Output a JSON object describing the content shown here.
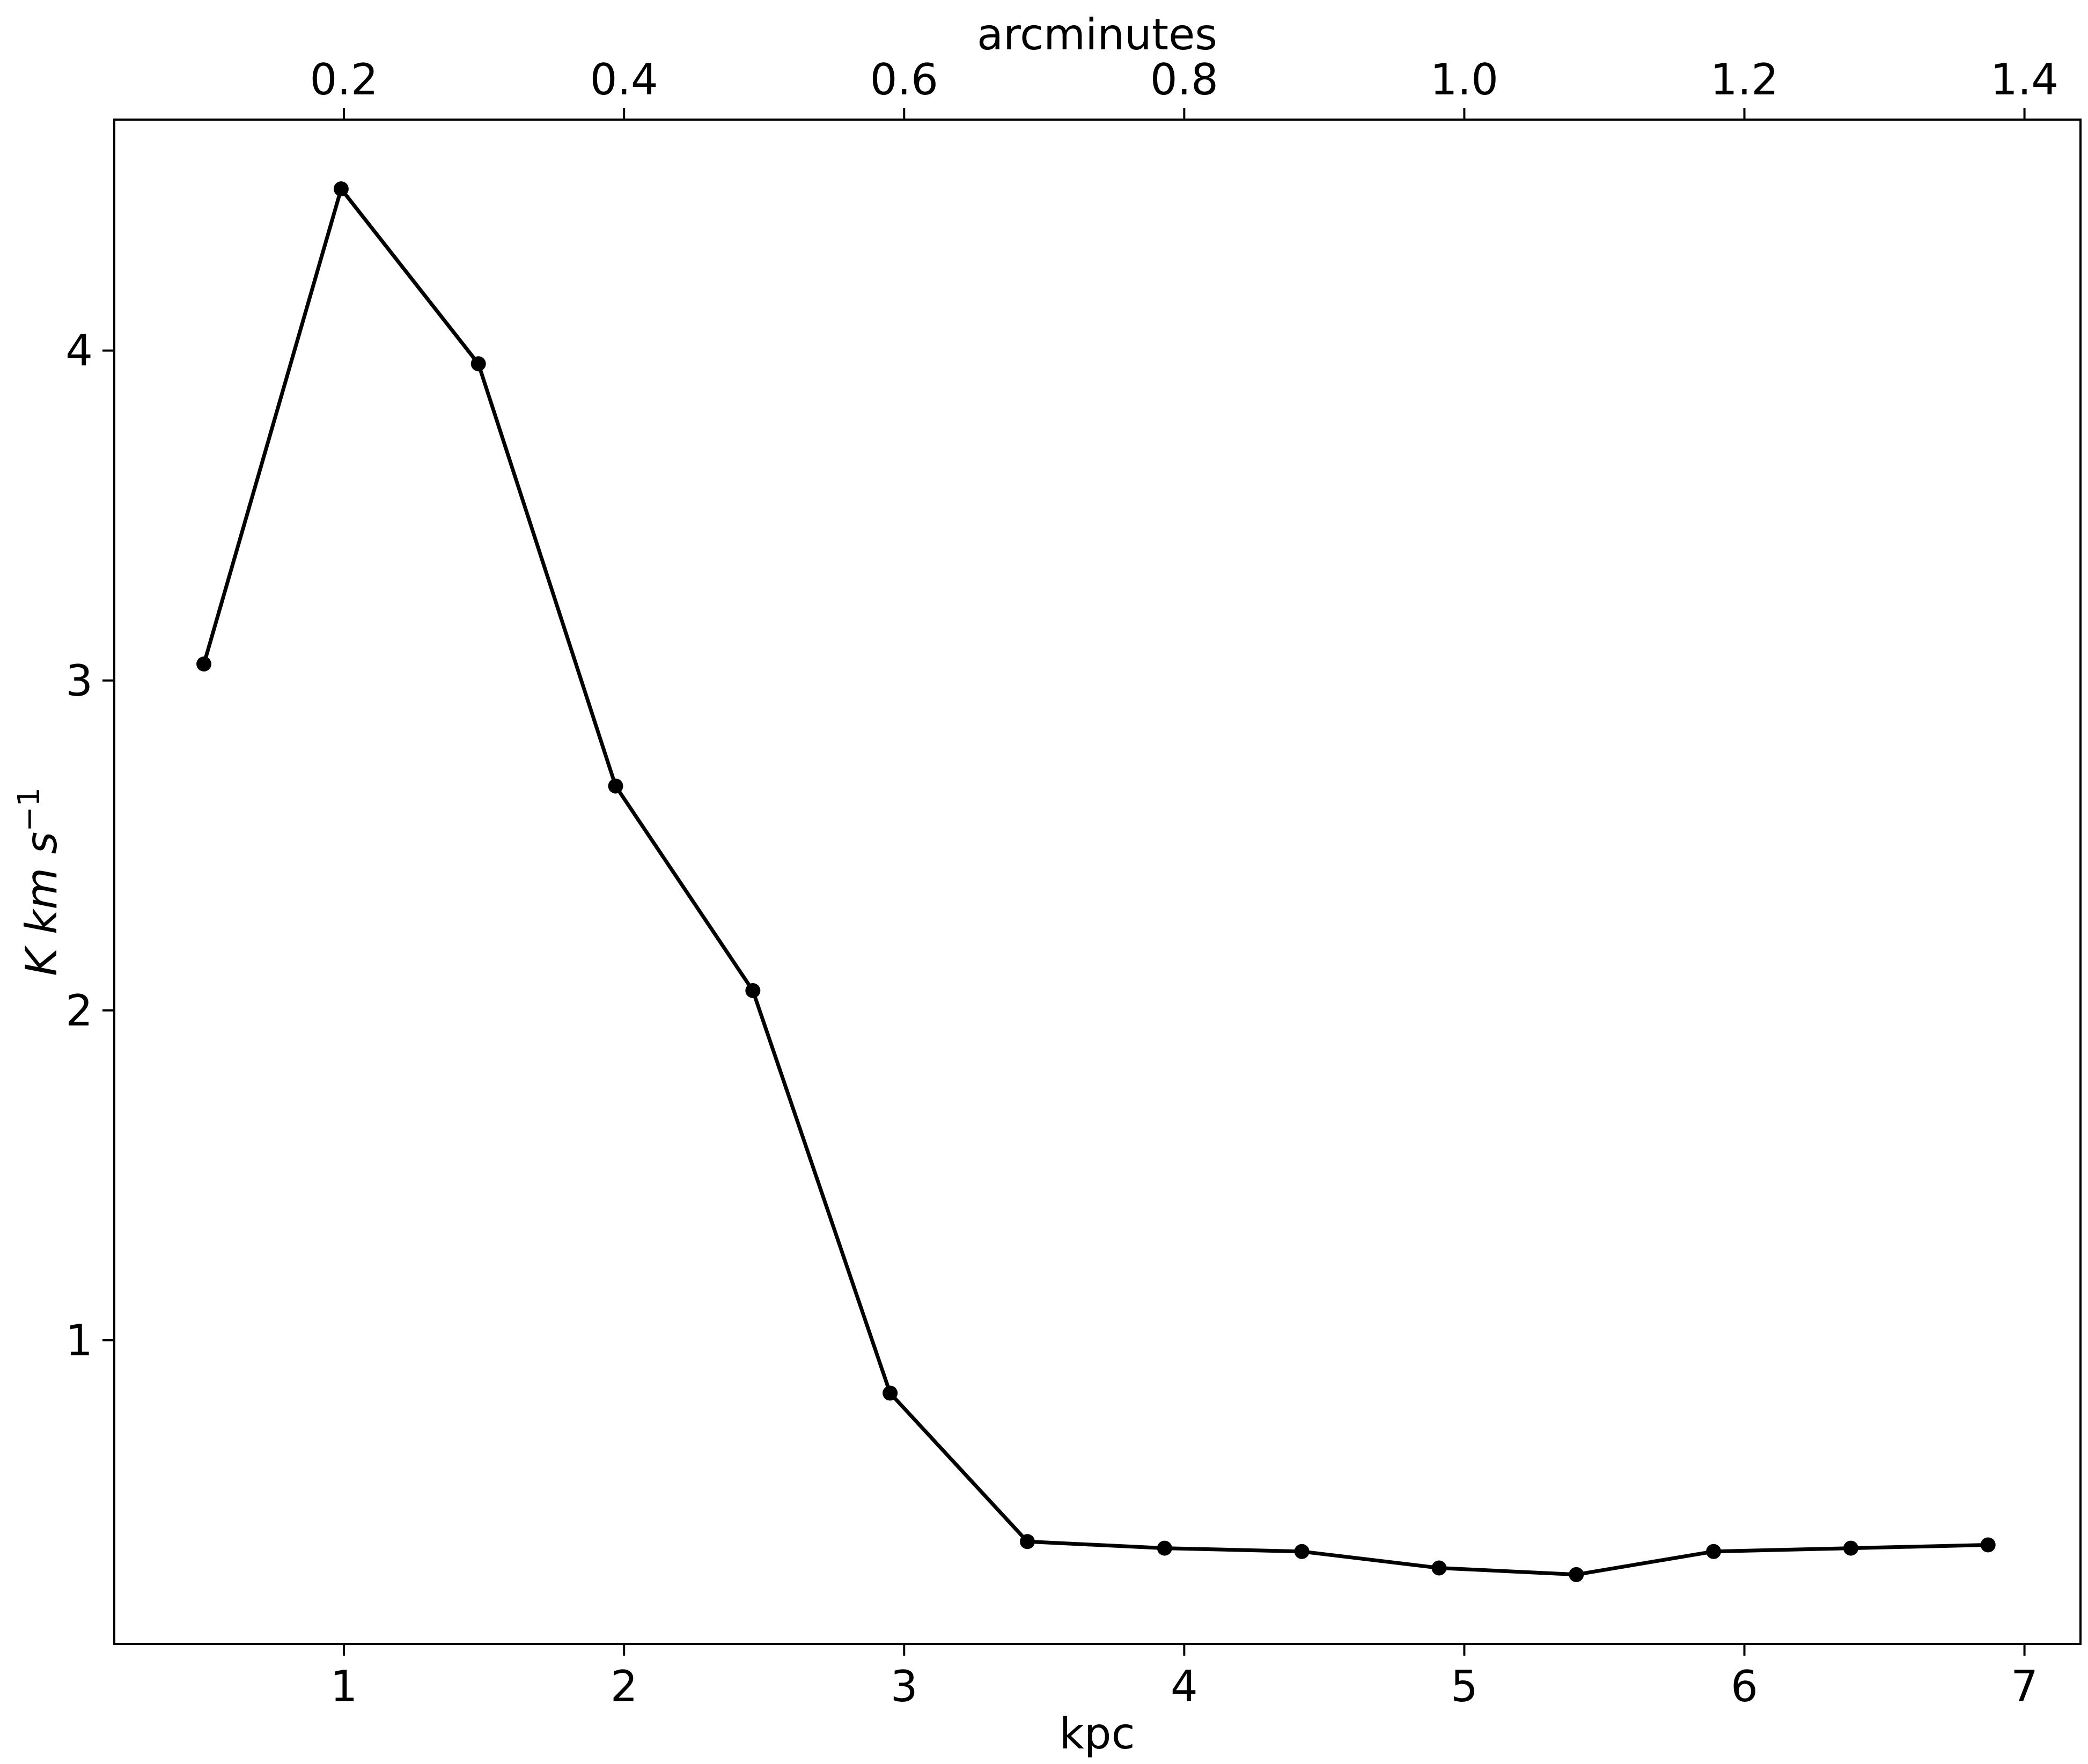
{
  "chart_data": {
    "type": "line",
    "xlabel": "kpc",
    "x2label": "arcminutes",
    "ylabel": {
      "main": "K km s",
      "superscript": "−1"
    },
    "xlim": [
      0.18,
      7.2
    ],
    "ylim": [
      0.08,
      4.7
    ],
    "x2lim": [
      0.036,
      1.44
    ],
    "x_ticks": [
      1,
      2,
      3,
      4,
      5,
      6,
      7
    ],
    "x_tick_labels": [
      "1",
      "2",
      "3",
      "4",
      "5",
      "6",
      "7"
    ],
    "x2_ticks": [
      0.2,
      0.4,
      0.6,
      0.8,
      1.0,
      1.2,
      1.4
    ],
    "x2_tick_labels": [
      "0.2",
      "0.4",
      "0.6",
      "0.8",
      "1.0",
      "1.2",
      "1.4"
    ],
    "y_ticks": [
      1,
      2,
      3,
      4
    ],
    "y_tick_labels": [
      "1",
      "2",
      "3",
      "4"
    ],
    "grid": false,
    "line_color": "#000000",
    "series": [
      {
        "x": [
          0.5,
          0.99,
          1.48,
          1.97,
          2.46,
          2.95,
          3.44,
          3.93,
          4.42,
          4.91,
          5.4,
          5.89,
          6.38,
          6.87
        ],
        "y": [
          3.05,
          4.49,
          3.96,
          2.68,
          2.06,
          0.84,
          0.39,
          0.37,
          0.36,
          0.31,
          0.29,
          0.36,
          0.37,
          0.38
        ]
      }
    ]
  }
}
